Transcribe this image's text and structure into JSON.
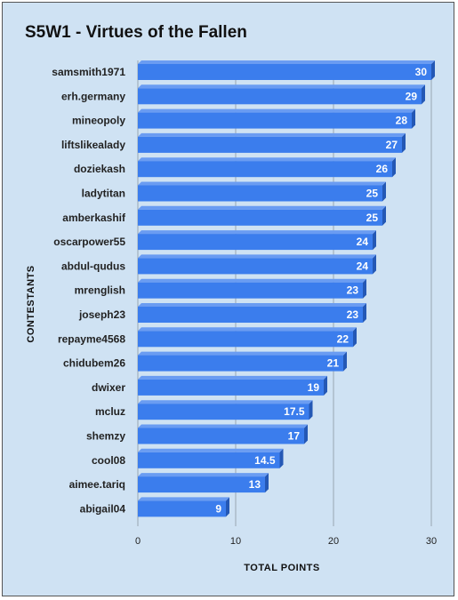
{
  "chart_data": {
    "type": "bar",
    "orientation": "horizontal",
    "title": "S5W1 - Virtues of the Fallen",
    "xlabel": "TOTAL POINTS",
    "ylabel": "CONTESTANTS",
    "xlim": [
      0,
      30
    ],
    "xticks": [
      "0",
      "10",
      "20",
      "30"
    ],
    "grid": true,
    "categories": [
      "samsmith1971",
      "erh.germany",
      "mineopoly",
      "liftslikealady",
      "doziekash",
      "ladytitan",
      "amberkashif",
      "oscarpower55",
      "abdul-qudus",
      "mrenglish",
      "joseph23",
      "repayme4568",
      "chidubem26",
      "dwixer",
      "mcluz",
      "shemzy",
      "cool08",
      "aimee.tariq",
      "abigail04"
    ],
    "values": [
      30,
      29,
      28,
      27,
      26,
      25,
      25,
      24,
      24,
      23,
      23,
      22,
      21,
      19,
      17.5,
      17,
      14.5,
      13,
      9
    ],
    "value_labels": [
      "30",
      "29",
      "28",
      "27",
      "26",
      "25",
      "25",
      "24",
      "24",
      "23",
      "23",
      "22",
      "21",
      "19",
      "17.5",
      "17",
      "14.5",
      "13",
      "9"
    ]
  },
  "colors": {
    "background": "#cfe2f3",
    "bar": "#3b7ded",
    "bar_top": "#6a9cf2",
    "bar_side": "#2458b5",
    "grid": "#9aa6b2"
  }
}
